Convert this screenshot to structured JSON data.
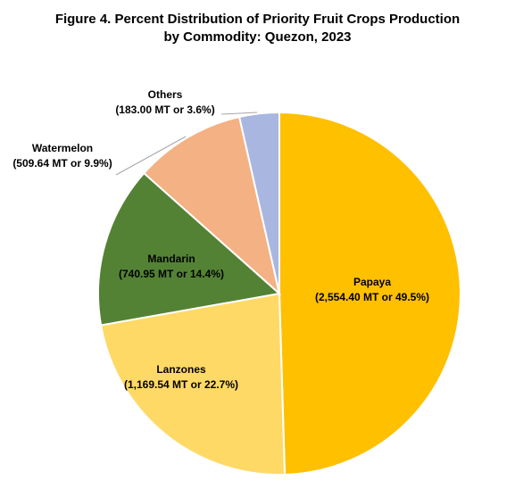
{
  "chart_data": {
    "type": "pie",
    "title_lines": [
      "Figure 4. Percent Distribution of Priority Fruit Crops Production",
      "by Commodity: Quezon, 2023"
    ],
    "slices": [
      {
        "name": "Papaya",
        "value": 2554.4,
        "percent": 49.5,
        "detail": "(2,554.40 MT or 49.5%)",
        "color": "#FFC000"
      },
      {
        "name": "Lanzones",
        "value": 1169.54,
        "percent": 22.7,
        "detail": "(1,169.54 MT or 22.7%)",
        "color": "#FFD966"
      },
      {
        "name": "Mandarin",
        "value": 740.95,
        "percent": 14.4,
        "detail": "(740.95 MT or 14.4%)",
        "color": "#548235"
      },
      {
        "name": "Watermelon",
        "value": 509.64,
        "percent": 9.9,
        "detail": "(509.64 MT or 9.9%)",
        "color": "#F4B183"
      },
      {
        "name": "Others",
        "value": 183.0,
        "percent": 3.6,
        "detail": "(183.00 MT or 3.6%)",
        "color": "#A9B7E0"
      }
    ],
    "start": "12 o'clock",
    "direction": "clockwise",
    "legend": "none"
  }
}
